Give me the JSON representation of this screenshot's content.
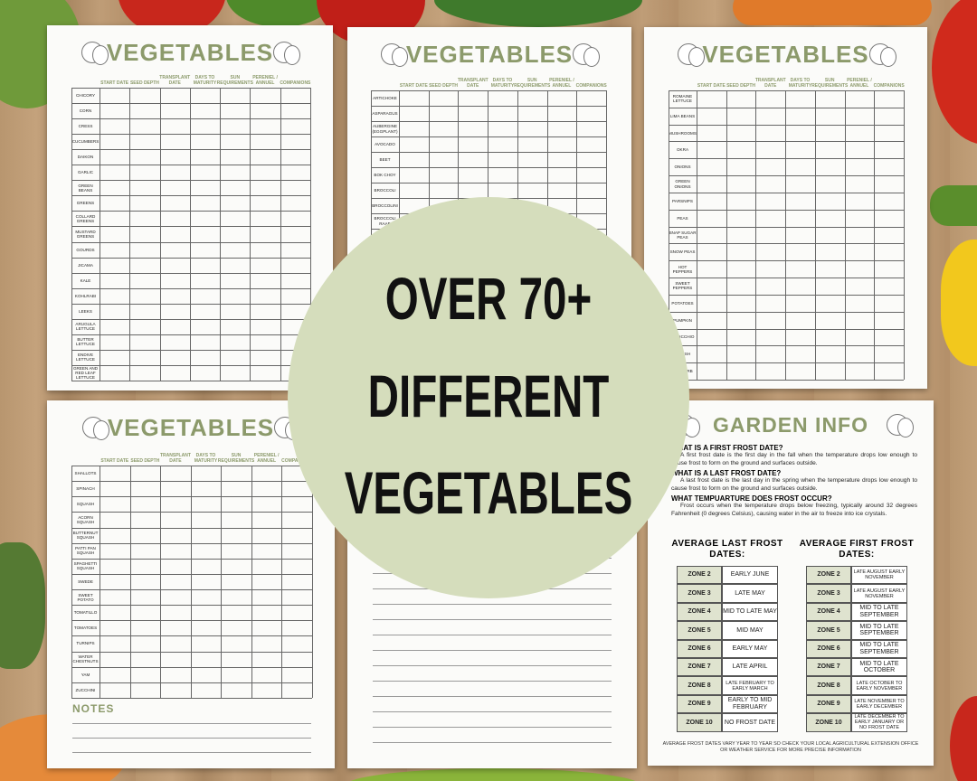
{
  "badge": {
    "lines": [
      "OVER 70+",
      "DIFFERENT",
      "VEGETABLES"
    ]
  },
  "columns": [
    "START DATE",
    "SEED DEPTH",
    "TRANSPLANT DATE",
    "DAYS TO MATURITY",
    "SUN REQUIREMENTS",
    "PERENIEL / ANNUEL",
    "COMPANIONS"
  ],
  "vegetable_sheets": [
    {
      "title": "VEGETABLES",
      "rows": [
        "CHICORY",
        "CORN",
        "CRESS",
        "CUCUMBERS",
        "DAIKON",
        "GARLIC",
        "GREEN BEANS",
        "GREENS",
        "COLLARD GREENS",
        "MUSTARD GREENS",
        "GOURDS",
        "JICAMA",
        "KALE",
        "KOHLRABI",
        "LEEKS",
        "ARUGULA LETTUCE",
        "BUTTER LETTUCE",
        "ENDIVE LETTUCE",
        "GREEN AND RED LEAF LETTUCE"
      ]
    },
    {
      "title": "VEGETABLES",
      "rows": [
        "ARTICHOKE",
        "ASPARAGUS",
        "AUBERGINE (EGGPLANT)",
        "AVOCADO",
        "BEET",
        "BOK CHOY",
        "BROCCOLI",
        "BROCCOLINI",
        "BROCCOLI RAAB"
      ]
    },
    {
      "title": "VEGETABLES",
      "rows": [
        "ROMAINE LETTUCE",
        "LIMA BEANS",
        "MUSHROOMS",
        "OKRA",
        "ONIONS",
        "GREEN ONIONS",
        "PARSNIPS",
        "PEAS",
        "SNAP SUGAR PEAS",
        "SNOW PEAS",
        "HOT PEPPERS",
        "SWEET PEPPERS",
        "POTATOES",
        "PUMPKIN",
        "RADICCHIO",
        "RADISH",
        "RHUBARB"
      ]
    },
    {
      "title": "VEGETABLES",
      "rows": [
        "SHALLOTS",
        "SPINACH",
        "SQUASH",
        "ACORN SQUASH",
        "BUTTERNUT SQUASH",
        "PATTI PAN SQUASH",
        "SPAGHETTI SQUASH",
        "SWEDE",
        "SWEET POTATO",
        "TOMATILLO",
        "TOMATOES",
        "TURNIPS",
        "WATER CHESTNUTS",
        "YAM",
        "ZUCCHINI"
      ],
      "notes": "NOTES"
    }
  ],
  "garden_info": {
    "title": "GARDEN INFO",
    "questions": [
      {
        "heading": "WHAT IS A FIRST FROST DATE?",
        "text": "A first frost date is the first day in the fall when the temperature drops low enough to cause frost to form on the ground and surfaces outside."
      },
      {
        "heading": "WHAT IS A LAST FROST DATE?",
        "text": "A last frost date is the last day in the spring when the temperature drops low enough to cause frost to form on the ground and surfaces outside."
      },
      {
        "heading": "WHAT TEMPUARTURE  DOES FROST OCCUR?",
        "text": "Frost occurs when the temperature drops below freezing, typically around 32 degrees Fahrenheit (0 degrees Celsius), causing water in the air to freeze into ice crystals."
      }
    ],
    "tables": [
      {
        "heading": "AVERAGE LAST FROST DATES:",
        "rows": [
          [
            "ZONE 2",
            "EARLY JUNE"
          ],
          [
            "ZONE 3",
            "LATE MAY"
          ],
          [
            "ZONE 4",
            "MID TO LATE MAY"
          ],
          [
            "ZONE 5",
            "MID MAY"
          ],
          [
            "ZONE 6",
            "EARLY MAY"
          ],
          [
            "ZONE 7",
            "LATE APRIL"
          ],
          [
            "ZONE 8",
            "LATE FEBRUARY TO EARLY MARCH"
          ],
          [
            "ZONE 9",
            "EARLY TO MID FEBRUARY"
          ],
          [
            "ZONE 10",
            "NO FROST DATE"
          ]
        ]
      },
      {
        "heading": "AVERAGE FIRST FROST DATES:",
        "rows": [
          [
            "ZONE 2",
            "LATE AUGUST EARLY NOVEMBER"
          ],
          [
            "ZONE 3",
            "LATE AUGUST EARLY NOVEMBER"
          ],
          [
            "ZONE 4",
            "MID TO LATE SEPTEMBER"
          ],
          [
            "ZONE 5",
            "MID TO LATE SEPTEMBER"
          ],
          [
            "ZONE 6",
            "MID TO LATE SEPTEMBER"
          ],
          [
            "ZONE 7",
            "MID TO LATE OCTOBER"
          ],
          [
            "ZONE 8",
            "LATE OCTOBER TO EARLY NOVEMBER"
          ],
          [
            "ZONE 9",
            "LATE NOVEMBER TO EARLY DECEMBER"
          ],
          [
            "ZONE 10",
            "LATE DECEMBER TO EARLY JANUARY OR NO FROST DATE"
          ]
        ]
      }
    ],
    "footer": "AVERAGE FROST DATES VARY YEAR TO YEAR SO CHECK YOUR LOCAL AGRICULTURAL EXTENSION OFFICE OR WEATHER SERVICE FOR MORE PRECISE INFORMATION"
  }
}
